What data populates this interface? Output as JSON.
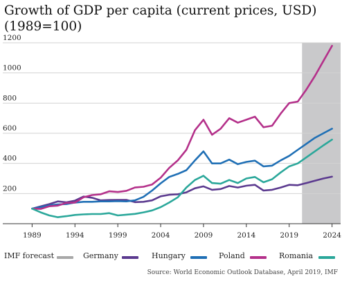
{
  "title": "Growth of GDP per capita (current prices, USD) (1989=100)",
  "source": "Source: World Economic Outlook Database, April 2019, IMF",
  "legend": {
    "forecast_label": "IMF forecast",
    "forecast_color": "#a8a8a8",
    "germany_label": "Germany",
    "germany_color": "#5b3a8f",
    "hungary_label": "Hungary",
    "hungary_color": "#1f6fb5",
    "poland_label": "Poland",
    "poland_color": "#b4308a",
    "romania_label": "Romania",
    "romania_color": "#2aa79a"
  },
  "chart_data": {
    "type": "line",
    "title": "Growth of GDP per capita (current prices, USD) (1989=100)",
    "xlabel": "",
    "ylabel": "",
    "xlim": [
      1988,
      2025
    ],
    "ylim": [
      0,
      1200
    ],
    "x_ticks": [
      1989,
      1994,
      1999,
      2004,
      2009,
      2014,
      2019,
      2024
    ],
    "y_ticks": [
      200,
      400,
      600,
      800,
      1000,
      1200
    ],
    "grid": true,
    "forecast_region": {
      "label": "IMF forecast",
      "from": 2020.5,
      "to": 2025
    },
    "x": [
      1989,
      1990,
      1991,
      1992,
      1993,
      1994,
      1995,
      1996,
      1997,
      1998,
      1999,
      2000,
      2001,
      2002,
      2003,
      2004,
      2005,
      2006,
      2007,
      2008,
      2009,
      2010,
      2011,
      2012,
      2013,
      2014,
      2015,
      2016,
      2017,
      2018,
      2019,
      2020,
      2021,
      2022,
      2023,
      2024
    ],
    "series": [
      {
        "name": "Germany",
        "color": "#5b3a8f",
        "values": [
          100,
          115,
          130,
          148,
          142,
          153,
          180,
          172,
          155,
          157,
          158,
          158,
          143,
          145,
          155,
          182,
          192,
          195,
          208,
          235,
          248,
          225,
          230,
          250,
          240,
          252,
          258,
          220,
          225,
          240,
          258,
          255,
          270,
          285,
          300,
          312
        ]
      },
      {
        "name": "Hungary",
        "color": "#1f6fb5",
        "values": [
          100,
          110,
          122,
          128,
          130,
          140,
          145,
          145,
          148,
          148,
          150,
          148,
          155,
          178,
          220,
          268,
          310,
          330,
          355,
          420,
          480,
          400,
          400,
          425,
          395,
          410,
          418,
          380,
          385,
          420,
          450,
          490,
          530,
          570,
          600,
          630
        ]
      },
      {
        "name": "Poland",
        "color": "#b4308a",
        "values": [
          100,
          98,
          116,
          120,
          138,
          140,
          175,
          190,
          195,
          215,
          210,
          218,
          240,
          245,
          260,
          305,
          370,
          420,
          490,
          620,
          690,
          590,
          630,
          700,
          670,
          690,
          710,
          640,
          650,
          730,
          800,
          810,
          890,
          980,
          1080,
          1180
        ]
      },
      {
        "name": "Romania",
        "color": "#2aa79a",
        "values": [
          100,
          75,
          55,
          43,
          50,
          58,
          62,
          64,
          64,
          70,
          55,
          60,
          65,
          75,
          88,
          110,
          140,
          175,
          240,
          290,
          318,
          270,
          265,
          290,
          270,
          300,
          310,
          275,
          295,
          340,
          380,
          400,
          440,
          480,
          520,
          558
        ]
      }
    ]
  }
}
